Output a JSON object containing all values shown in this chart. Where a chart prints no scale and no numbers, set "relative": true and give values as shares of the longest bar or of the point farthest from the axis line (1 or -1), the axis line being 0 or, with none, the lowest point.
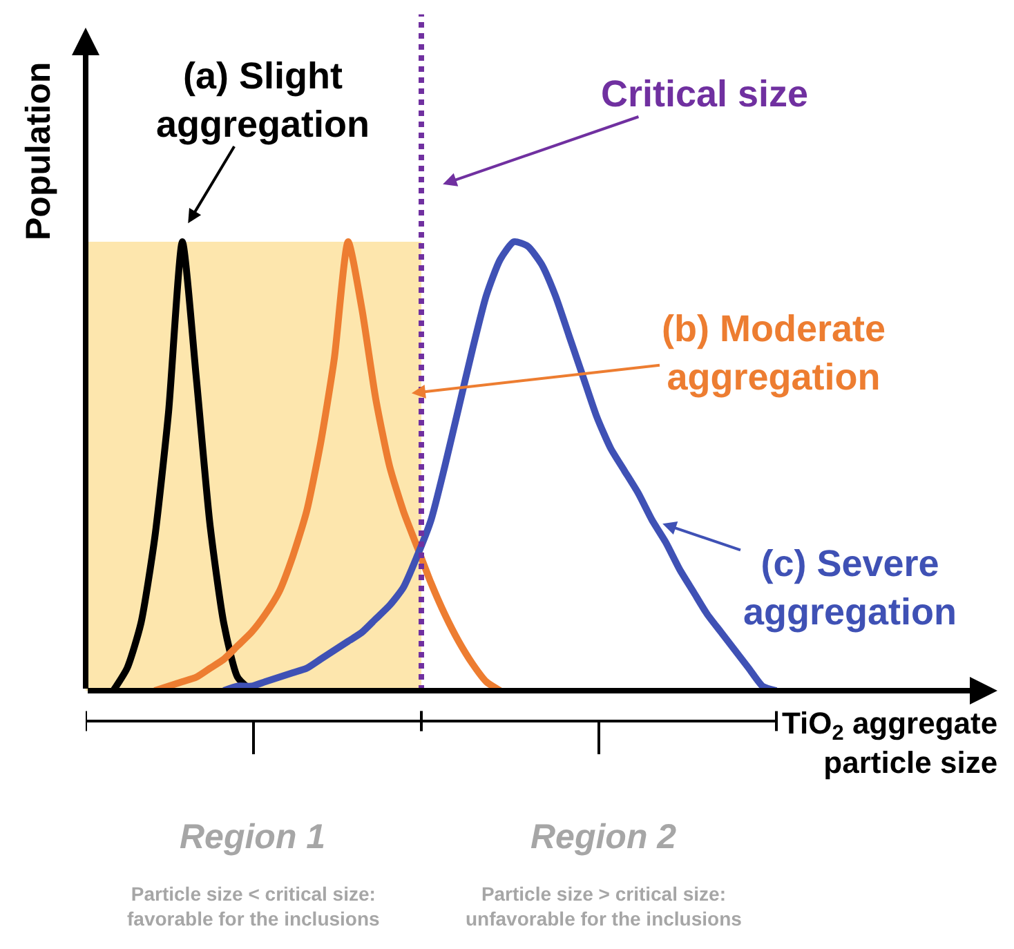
{
  "chart_data": {
    "type": "line",
    "relative": true,
    "marker": "none",
    "line_style": "solid",
    "xlabel": "TiO$_{2}$ aggregate\nparticle size",
    "ylabel": "Population",
    "categories": [
      null,
      null,
      null,
      null,
      null,
      null,
      null,
      null,
      null,
      null,
      null,
      null,
      null,
      null,
      null,
      null,
      null,
      null,
      null,
      null,
      null,
      null,
      null,
      null,
      null,
      null,
      null,
      null,
      null,
      null,
      null,
      null,
      null,
      null,
      null,
      null,
      null,
      null,
      null,
      null,
      null,
      null,
      null,
      null,
      null,
      null,
      null,
      null,
      null,
      null,
      null,
      null,
      null,
      null,
      null,
      null,
      null,
      null,
      null,
      null,
      null,
      null,
      null,
      null,
      null,
      null,
      null
    ],
    "series": [
      {
        "color": "#000000",
        "values": [
          null,
          null,
          0,
          0.05,
          0.15,
          0.34,
          0.62,
          1.0,
          0.7,
          0.37,
          0.15,
          0.03,
          0,
          null,
          null,
          null,
          null,
          null,
          null,
          null,
          null,
          null,
          null,
          null,
          null,
          null,
          null,
          null,
          null,
          null,
          null,
          null,
          null,
          null,
          null,
          null,
          null,
          null,
          null,
          null,
          null,
          null,
          null,
          null,
          null,
          null,
          null,
          null,
          null,
          null,
          null,
          null,
          null,
          null,
          null,
          null,
          null,
          null,
          null,
          null,
          null,
          null,
          null,
          null,
          null,
          null,
          null
        ]
      },
      {
        "color": "#ed7d31",
        "values": [
          null,
          null,
          null,
          null,
          null,
          0,
          0.01,
          0.02,
          0.03,
          0.05,
          0.07,
          0.1,
          0.13,
          0.17,
          0.22,
          0.3,
          0.4,
          0.55,
          0.74,
          1.0,
          0.85,
          0.65,
          0.5,
          0.4,
          0.32,
          0.24,
          0.17,
          0.11,
          0.06,
          0.02,
          0,
          null,
          null,
          null,
          null,
          null,
          null,
          null,
          null,
          null,
          null,
          null,
          null,
          null,
          null,
          null,
          null,
          null,
          null,
          null,
          null,
          null,
          null,
          null,
          null,
          null,
          null,
          null,
          null,
          null,
          null,
          null,
          null,
          null,
          null,
          null,
          null
        ]
      },
      {
        "color": "#3f51b5",
        "values": [
          null,
          null,
          null,
          null,
          null,
          null,
          null,
          null,
          null,
          null,
          0,
          0.01,
          0.01,
          0.02,
          0.03,
          0.04,
          0.05,
          0.07,
          0.09,
          0.11,
          0.13,
          0.16,
          0.19,
          0.23,
          0.3,
          0.38,
          0.5,
          0.63,
          0.76,
          0.88,
          0.96,
          1.0,
          0.99,
          0.95,
          0.88,
          0.79,
          0.7,
          0.61,
          0.54,
          0.49,
          0.44,
          0.38,
          0.33,
          0.27,
          0.22,
          0.17,
          0.13,
          0.09,
          0.05,
          0.01,
          0,
          null,
          null,
          null,
          null,
          null,
          null,
          null,
          null,
          null,
          null,
          null,
          null,
          null,
          null,
          null,
          null
        ]
      }
    ],
    "annotations": [
      "(a) Slight\naggregation",
      "(b) Moderate\naggregation",
      "(c) Severe\naggregation",
      "Critical size",
      "Region 1",
      "Particle size < critical size:\nfavorable for the inclusions",
      "Region 2",
      "Particle size > critical size:\nunfavorable for the inclusions"
    ]
  }
}
